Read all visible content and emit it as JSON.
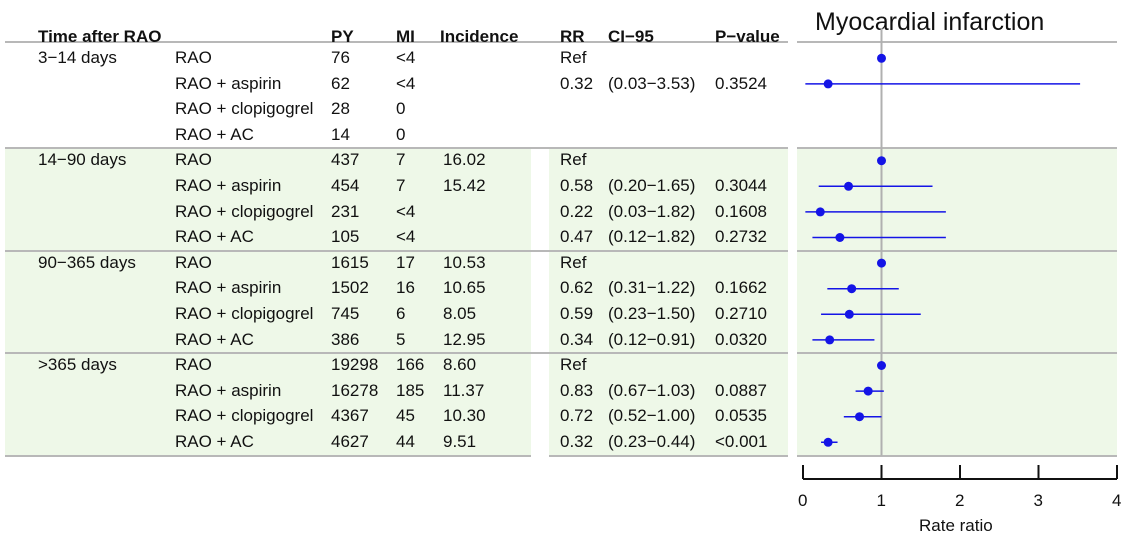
{
  "headers": {
    "time": "Time after RAO",
    "py": "PY",
    "mi": "MI",
    "incidence": "Incidence",
    "rr": "RR",
    "ci": "CI−95",
    "p": "P−value"
  },
  "groups": [
    {
      "label": "3−14 days",
      "rows": [
        {
          "treatment": "RAO",
          "py": "76",
          "mi": "<4",
          "incidence": "",
          "rr": "Ref",
          "ci": "",
          "p": ""
        },
        {
          "treatment": "RAO + aspirin",
          "py": "62",
          "mi": "<4",
          "incidence": "",
          "rr": "0.32",
          "ci": "(0.03−3.53)",
          "p": "0.3524"
        },
        {
          "treatment": "RAO + clopigogrel",
          "py": "28",
          "mi": "0",
          "incidence": "",
          "rr": "",
          "ci": "",
          "p": ""
        },
        {
          "treatment": "RAO + AC",
          "py": "14",
          "mi": "0",
          "incidence": "",
          "rr": "",
          "ci": "",
          "p": ""
        }
      ]
    },
    {
      "label": "14−90 days",
      "rows": [
        {
          "treatment": "RAO",
          "py": "437",
          "mi": "7",
          "incidence": "16.02",
          "rr": "Ref",
          "ci": "",
          "p": ""
        },
        {
          "treatment": "RAO + aspirin",
          "py": "454",
          "mi": "7",
          "incidence": "15.42",
          "rr": "0.58",
          "ci": "(0.20−1.65)",
          "p": "0.3044"
        },
        {
          "treatment": "RAO + clopigogrel",
          "py": "231",
          "mi": "<4",
          "incidence": "",
          "rr": "0.22",
          "ci": "(0.03−1.82)",
          "p": "0.1608"
        },
        {
          "treatment": "RAO + AC",
          "py": "105",
          "mi": "<4",
          "incidence": "",
          "rr": "0.47",
          "ci": "(0.12−1.82)",
          "p": "0.2732"
        }
      ]
    },
    {
      "label": "90−365 days",
      "rows": [
        {
          "treatment": "RAO",
          "py": "1615",
          "mi": "17",
          "incidence": "10.53",
          "rr": "Ref",
          "ci": "",
          "p": ""
        },
        {
          "treatment": "RAO + aspirin",
          "py": "1502",
          "mi": "16",
          "incidence": "10.65",
          "rr": "0.62",
          "ci": "(0.31−1.22)",
          "p": "0.1662"
        },
        {
          "treatment": "RAO + clopigogrel",
          "py": "745",
          "mi": "6",
          "incidence": "8.05",
          "rr": "0.59",
          "ci": "(0.23−1.50)",
          "p": "0.2710"
        },
        {
          "treatment": "RAO + AC",
          "py": "386",
          "mi": "5",
          "incidence": "12.95",
          "rr": "0.34",
          "ci": "(0.12−0.91)",
          "p": "0.0320"
        }
      ]
    },
    {
      "label": ">365 days",
      "rows": [
        {
          "treatment": "RAO",
          "py": "19298",
          "mi": "166",
          "incidence": "8.60",
          "rr": "Ref",
          "ci": "",
          "p": ""
        },
        {
          "treatment": "RAO + aspirin",
          "py": "16278",
          "mi": "185",
          "incidence": "11.37",
          "rr": "0.83",
          "ci": "(0.67−1.03)",
          "p": "0.0887"
        },
        {
          "treatment": "RAO + clopigogrel",
          "py": "4367",
          "mi": "45",
          "incidence": "10.30",
          "rr": "0.72",
          "ci": "(0.52−1.00)",
          "p": "0.0535"
        },
        {
          "treatment": "RAO + AC",
          "py": "4627",
          "mi": "44",
          "incidence": "9.51",
          "rr": "0.32",
          "ci": "(0.23−0.44)",
          "p": "<0.001"
        }
      ]
    }
  ],
  "colors": {
    "point": "#1414e6",
    "band": "#eef8e8",
    "refline": "#b0b0b0",
    "separator": "#b8b8b8"
  },
  "chart_data": {
    "type": "forest",
    "title": "Myocardial infarction",
    "xlabel": "Rate ratio",
    "xlim": [
      0,
      4
    ],
    "xticks": [
      0,
      1,
      2,
      3,
      4
    ],
    "reference_line": 1,
    "points": [
      {
        "group": "3−14 days",
        "treatment": "RAO",
        "rr": 1,
        "lo": null,
        "hi": null
      },
      {
        "group": "3−14 days",
        "treatment": "RAO + aspirin",
        "rr": 0.32,
        "lo": 0.03,
        "hi": 3.53
      },
      {
        "group": "14−90 days",
        "treatment": "RAO",
        "rr": 1,
        "lo": null,
        "hi": null
      },
      {
        "group": "14−90 days",
        "treatment": "RAO + aspirin",
        "rr": 0.58,
        "lo": 0.2,
        "hi": 1.65
      },
      {
        "group": "14−90 days",
        "treatment": "RAO + clopigogrel",
        "rr": 0.22,
        "lo": 0.03,
        "hi": 1.82
      },
      {
        "group": "14−90 days",
        "treatment": "RAO + AC",
        "rr": 0.47,
        "lo": 0.12,
        "hi": 1.82
      },
      {
        "group": "90−365 days",
        "treatment": "RAO",
        "rr": 1,
        "lo": null,
        "hi": null
      },
      {
        "group": "90−365 days",
        "treatment": "RAO + aspirin",
        "rr": 0.62,
        "lo": 0.31,
        "hi": 1.22
      },
      {
        "group": "90−365 days",
        "treatment": "RAO + clopigogrel",
        "rr": 0.59,
        "lo": 0.23,
        "hi": 1.5
      },
      {
        "group": "90−365 days",
        "treatment": "RAO + AC",
        "rr": 0.34,
        "lo": 0.12,
        "hi": 0.91
      },
      {
        "group": ">365 days",
        "treatment": "RAO",
        "rr": 1,
        "lo": null,
        "hi": null
      },
      {
        "group": ">365 days",
        "treatment": "RAO + aspirin",
        "rr": 0.83,
        "lo": 0.67,
        "hi": 1.03
      },
      {
        "group": ">365 days",
        "treatment": "RAO + clopigogrel",
        "rr": 0.72,
        "lo": 0.52,
        "hi": 1.0
      },
      {
        "group": ">365 days",
        "treatment": "RAO + AC",
        "rr": 0.32,
        "lo": 0.23,
        "hi": 0.44
      }
    ]
  }
}
